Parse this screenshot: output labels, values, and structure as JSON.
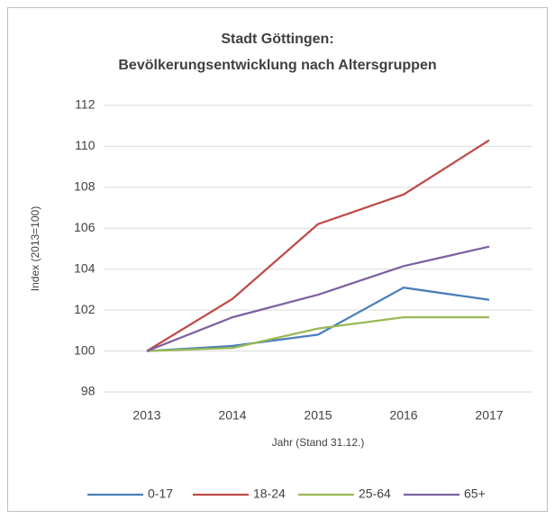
{
  "chart_data": {
    "type": "line",
    "title": [
      "Stadt Göttingen:",
      "Bevölkerungsentwicklung nach Altersgruppen"
    ],
    "x_label": "Jahr (Stand 31.12.)",
    "y_label": "Index (2013=100)",
    "categories": [
      "2013",
      "2014",
      "2015",
      "2016",
      "2017"
    ],
    "series": [
      {
        "name": "0-17",
        "color": "#4a7ebb",
        "values": [
          100,
          100.25,
          100.8,
          103.1,
          102.5
        ]
      },
      {
        "name": "18-24",
        "color": "#be4b48",
        "values": [
          100,
          102.55,
          106.2,
          107.65,
          110.3
        ]
      },
      {
        "name": "25-64",
        "color": "#98b954",
        "values": [
          100,
          100.15,
          101.1,
          101.65,
          101.65
        ]
      },
      {
        "name": "65+",
        "color": "#7d60a0",
        "values": [
          100,
          101.65,
          102.75,
          104.15,
          105.1
        ]
      }
    ],
    "ylim": [
      98,
      112
    ],
    "yticks": [
      98,
      100,
      102,
      104,
      106,
      108,
      110,
      112
    ],
    "grid": true,
    "legend": "bottom"
  }
}
